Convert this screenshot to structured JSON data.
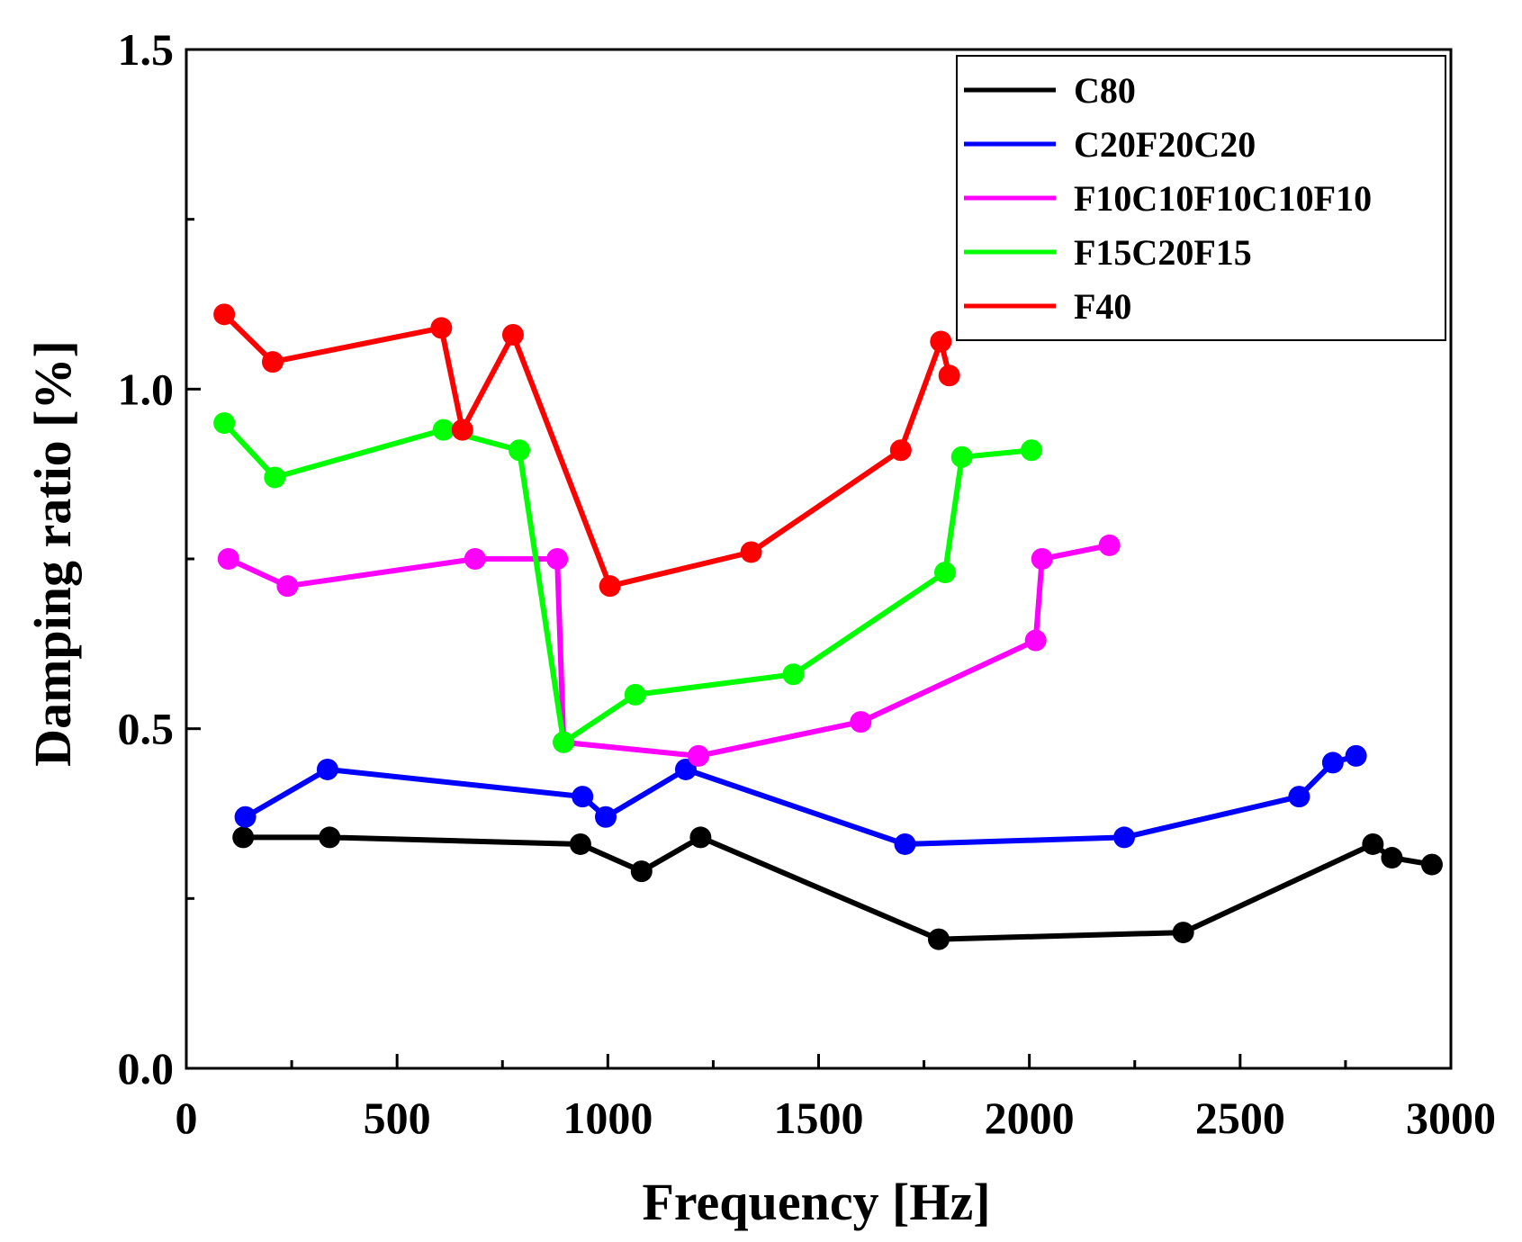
{
  "chart_data": {
    "type": "line",
    "title": "",
    "xlabel": "Frequency [Hz]",
    "ylabel": "Damping ratio [%]",
    "xlim": [
      0,
      3000
    ],
    "ylim": [
      0,
      1.5
    ],
    "xticks": [
      0,
      500,
      1000,
      1500,
      2000,
      2500,
      3000
    ],
    "xtick_labels": [
      "0",
      "500",
      "1000",
      "1500",
      "2000",
      "2500",
      "3000"
    ],
    "yticks": [
      0.0,
      0.5,
      1.0,
      1.5
    ],
    "ytick_labels": [
      "0.0",
      "0.5",
      "1.0",
      "1.5"
    ],
    "y_minor_ticks": [
      0.25,
      0.75,
      1.25
    ],
    "grid": false,
    "legend_position": "top-right",
    "series": [
      {
        "name": "C80",
        "color": "#000000",
        "x": [
          135,
          340,
          935,
          1080,
          1220,
          1785,
          2365,
          2815,
          2860,
          2955
        ],
        "y": [
          0.34,
          0.34,
          0.33,
          0.29,
          0.34,
          0.19,
          0.2,
          0.33,
          0.31,
          0.3
        ]
      },
      {
        "name": "C20F20C20",
        "color": "#0000ff",
        "x": [
          140,
          335,
          940,
          995,
          1185,
          1705,
          2225,
          2640,
          2720,
          2775
        ],
        "y": [
          0.37,
          0.44,
          0.4,
          0.37,
          0.44,
          0.33,
          0.34,
          0.4,
          0.45,
          0.46
        ]
      },
      {
        "name": "F10C10F10C10F10",
        "color": "#ff00ff",
        "x": [
          100,
          240,
          685,
          880,
          895,
          1215,
          1600,
          2015,
          2030,
          2190
        ],
        "y": [
          0.75,
          0.71,
          0.75,
          0.75,
          0.48,
          0.46,
          0.51,
          0.63,
          0.75,
          0.77
        ]
      },
      {
        "name": "F15C20F15",
        "color": "#00ff00",
        "x": [
          90,
          210,
          610,
          790,
          895,
          1065,
          1440,
          1800,
          1840,
          2005
        ],
        "y": [
          0.95,
          0.87,
          0.94,
          0.91,
          0.48,
          0.55,
          0.58,
          0.73,
          0.9,
          0.91
        ]
      },
      {
        "name": "F40",
        "color": "#ff0000",
        "x": [
          90,
          205,
          605,
          655,
          775,
          1005,
          1340,
          1695,
          1790,
          1810
        ],
        "y": [
          1.11,
          1.04,
          1.09,
          0.94,
          1.08,
          0.71,
          0.76,
          0.91,
          1.07,
          1.02
        ]
      }
    ]
  }
}
